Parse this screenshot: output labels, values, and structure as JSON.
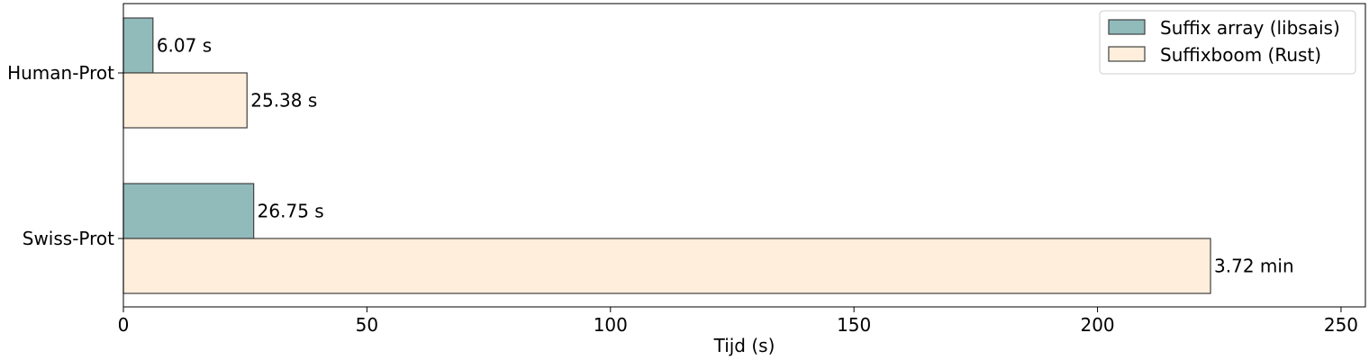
{
  "chart_data": {
    "type": "bar",
    "orientation": "horizontal",
    "title": "",
    "xlabel": "Tijd (s)",
    "ylabel": "",
    "xlim": [
      0,
      255
    ],
    "xticks": [
      0,
      50,
      100,
      150,
      200,
      250
    ],
    "xtick_labels": [
      "0",
      "50",
      "100",
      "150",
      "200",
      "250"
    ],
    "grid": false,
    "legend_position": "top-right",
    "categories": [
      "Human-Prot",
      "Swiss-Prot"
    ],
    "series": [
      {
        "name": "Suffix array (libsais)",
        "color": "#91babb",
        "values": [
          6.07,
          26.75
        ],
        "labels": [
          "6.07 s",
          "26.75 s"
        ]
      },
      {
        "name": "Suffixboom (Rust)",
        "color": "#ffeedb",
        "values": [
          25.38,
          223.2
        ],
        "labels": [
          "25.38 s",
          "3.72 min"
        ]
      }
    ],
    "edge_color": "#404040"
  }
}
